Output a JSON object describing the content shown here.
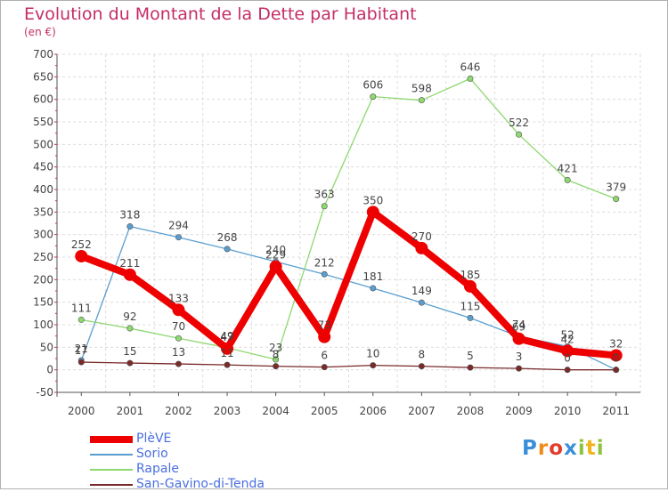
{
  "chart_data": {
    "type": "line",
    "title": "Evolution du Montant de la Dette par Habitant",
    "subtitle": "(en €)",
    "x": [
      "2000",
      "2001",
      "2002",
      "2003",
      "2004",
      "2005",
      "2006",
      "2007",
      "2008",
      "2009",
      "2010",
      "2011"
    ],
    "ylim": [
      -50,
      700
    ],
    "yticks": [
      -50,
      0,
      50,
      100,
      150,
      200,
      250,
      300,
      350,
      400,
      450,
      500,
      550,
      600,
      650,
      700
    ],
    "grid": true,
    "legend_position": "bottom-left",
    "series": [
      {
        "name": "PlèVE",
        "color": "#ee0000",
        "values": [
          252,
          211,
          133,
          47,
          229,
          73,
          350,
          270,
          185,
          69,
          42,
          32
        ],
        "labels": [
          "252",
          "211",
          "133",
          "47",
          "229",
          "73",
          "350",
          "270",
          "185",
          "69",
          "42",
          "32"
        ]
      },
      {
        "name": "Sorio",
        "color": "#5a9ed0",
        "values": [
          21,
          318,
          294,
          268,
          240,
          212,
          181,
          149,
          115,
          74,
          52,
          0
        ],
        "labels": [
          "21",
          "318",
          "294",
          "268",
          "240",
          "212",
          "181",
          "149",
          "115",
          "74",
          "52",
          "0"
        ]
      },
      {
        "name": "Rapale",
        "color": "#8ed870",
        "values": [
          111,
          92,
          70,
          49,
          23,
          363,
          606,
          598,
          646,
          522,
          421,
          379
        ],
        "labels": [
          "111",
          "92",
          "70",
          "49",
          "23",
          "363",
          "606",
          "598",
          "646",
          "522",
          "421",
          "379"
        ]
      },
      {
        "name": "San-Gavino-di-Tenda",
        "color": "#7a2a2a",
        "values": [
          17,
          15,
          13,
          11,
          8,
          6,
          10,
          8,
          5,
          3,
          0,
          0
        ],
        "labels": [
          "17",
          "15",
          "13",
          "11",
          "8",
          "6",
          "10",
          "8",
          "5",
          "3",
          "0",
          "0"
        ]
      }
    ]
  },
  "logo": {
    "text": "Proxiti"
  }
}
